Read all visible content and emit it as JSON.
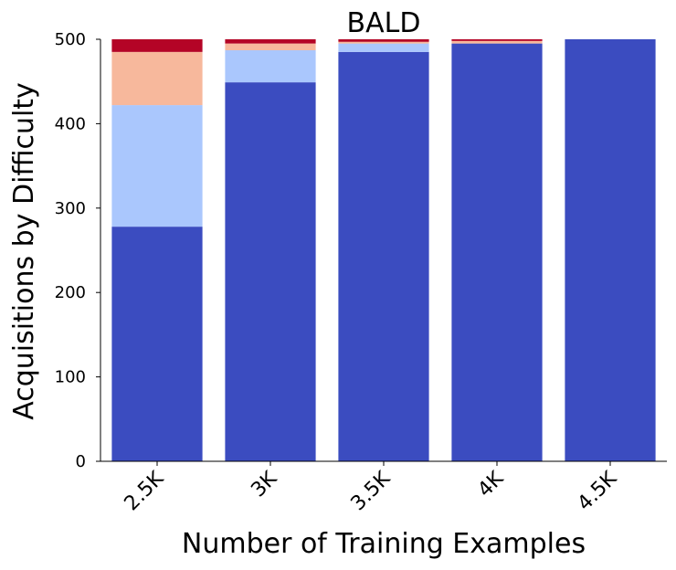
{
  "chart_data": {
    "type": "bar",
    "stacked": true,
    "title": "BALD",
    "xlabel": "Number of Training Examples",
    "ylabel": "Acquisitions by Difficulty",
    "ylim": [
      0,
      500
    ],
    "yticks": [
      "0",
      "100",
      "200",
      "300",
      "400",
      "500"
    ],
    "categories": [
      "2.5K",
      "3K",
      "3.5K",
      "4K",
      "4.5K"
    ],
    "grid": false,
    "legend": "none",
    "series": [
      {
        "color": "#3b4cc0",
        "values": [
          278,
          449,
          485,
          495,
          500
        ]
      },
      {
        "color": "#aac7fd",
        "values": [
          144,
          38,
          10,
          0,
          0
        ]
      },
      {
        "color": "#f7b89c",
        "values": [
          63,
          8,
          2,
          3,
          0
        ]
      },
      {
        "color": "#b40426",
        "values": [
          15,
          5,
          3,
          2,
          0
        ]
      }
    ]
  }
}
